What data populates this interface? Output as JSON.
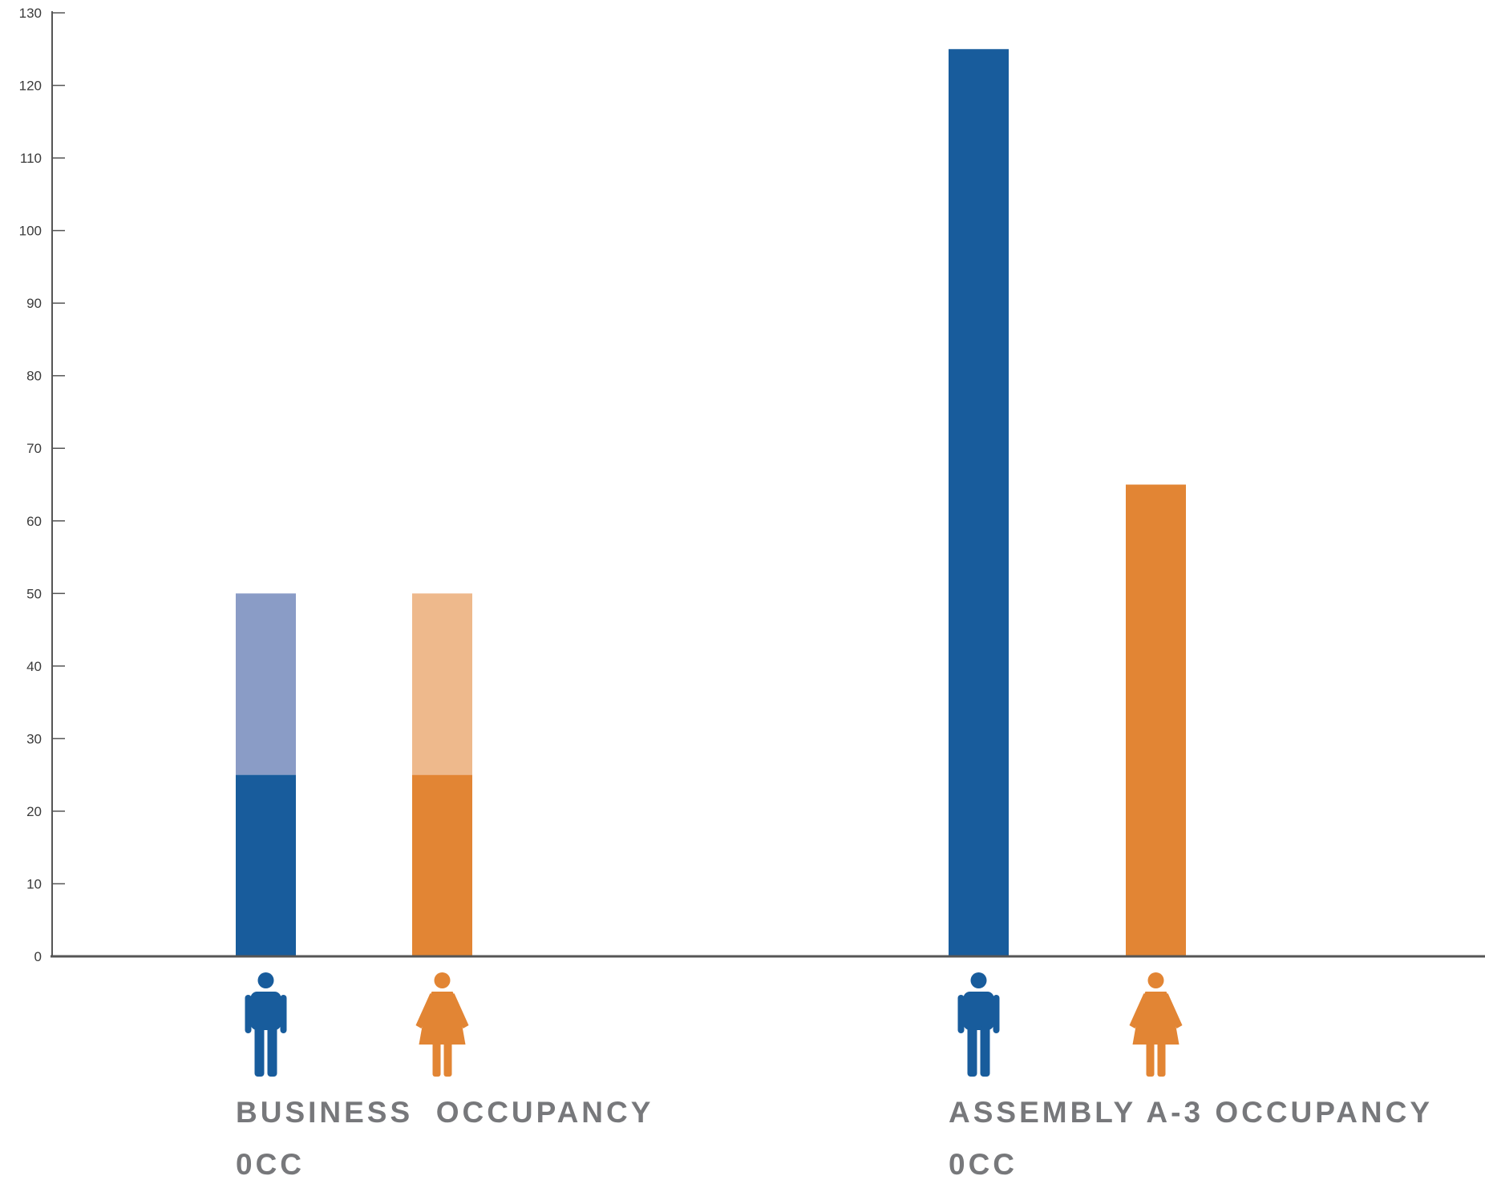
{
  "chart_data": {
    "type": "bar",
    "yticks": [
      0,
      10,
      20,
      30,
      40,
      50,
      60,
      70,
      80,
      90,
      100,
      110,
      120,
      130
    ],
    "ylim": [
      0,
      130
    ],
    "grid": false,
    "groups": [
      {
        "label_line1": "BUSINESS  OCCUPANCY",
        "label_line2": "0CC",
        "bars": [
          {
            "icon": "male-icon",
            "value": 25,
            "stacked_total": 50
          },
          {
            "icon": "female-icon",
            "value": 25,
            "stacked_total": 50
          }
        ]
      },
      {
        "label_line1": "ASSEMBLY A-3 OCCUPANCY",
        "label_line2": "0CC",
        "bars": [
          {
            "icon": "male-icon",
            "value": 125
          },
          {
            "icon": "female-icon",
            "value": 65
          }
        ]
      }
    ],
    "colors": {
      "male": "#185c9c",
      "male_light": "#8a9cc6",
      "female": "#e28534",
      "female_light": "#eeb98c",
      "axis": "#555555",
      "label": "#77787b"
    }
  }
}
